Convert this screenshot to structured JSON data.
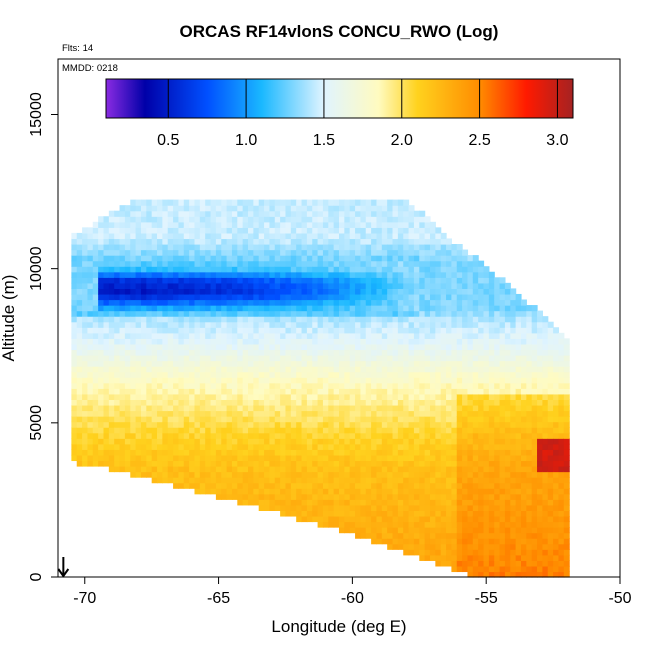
{
  "chart_data": {
    "type": "heatmap",
    "title": "ORCAS RF14vlonS CONCU_RWO (Log)",
    "flights_label": "Flts: 14",
    "date_label": "MMDD: 0218",
    "xlabel": "Longitude (deg E)",
    "ylabel": "Altitude (m)",
    "xlim": [
      -71,
      -50
    ],
    "ylim": [
      0,
      16800
    ],
    "x_ticks": [
      -70,
      -65,
      -60,
      -55,
      -50
    ],
    "x_tick_labels": [
      "-70",
      "-65",
      "-60",
      "-55",
      "-50"
    ],
    "y_ticks": [
      0,
      5000,
      10000,
      15000
    ],
    "y_tick_labels": [
      "0",
      "5000",
      "10000",
      "15000"
    ],
    "colorbar": {
      "range": [
        0.1,
        3.1
      ],
      "ticks": [
        0.5,
        1.0,
        1.5,
        2.0,
        2.5,
        3.0
      ],
      "tick_labels": [
        "0.5",
        "1.0",
        "1.5",
        "2.0",
        "2.5",
        "3.0"
      ],
      "color_stops": [
        {
          "v": 0.1,
          "color": "#8a2be2"
        },
        {
          "v": 0.35,
          "color": "#0000a8"
        },
        {
          "v": 0.75,
          "color": "#0050ff"
        },
        {
          "v": 1.1,
          "color": "#1ab8ff"
        },
        {
          "v": 1.5,
          "color": "#e0f4ff"
        },
        {
          "v": 1.85,
          "color": "#fffbc0"
        },
        {
          "v": 2.1,
          "color": "#ffd21e"
        },
        {
          "v": 2.5,
          "color": "#ff8c00"
        },
        {
          "v": 2.8,
          "color": "#ff1a00"
        },
        {
          "v": 3.1,
          "color": "#a52222"
        }
      ]
    },
    "x_marker": {
      "x": -70.8,
      "symbol": "down-arrow"
    },
    "grid": false,
    "legend": "colorbar top inside plot",
    "profile": [
      {
        "z": 12000,
        "v": 1.45
      },
      {
        "z": 11000,
        "v": 1.45
      },
      {
        "z": 10400,
        "v": 1.3
      },
      {
        "z": 10000,
        "v": 1.15
      },
      {
        "z": 9600,
        "v": 0.55
      },
      {
        "z": 9200,
        "v": 0.45
      },
      {
        "z": 8800,
        "v": 0.95
      },
      {
        "z": 8400,
        "v": 1.4
      },
      {
        "z": 7500,
        "v": 1.55
      },
      {
        "z": 6500,
        "v": 1.8
      },
      {
        "z": 5500,
        "v": 1.95
      },
      {
        "z": 4500,
        "v": 2.1
      },
      {
        "z": 3500,
        "v": 2.2
      },
      {
        "z": 2500,
        "v": 2.25
      },
      {
        "z": 1500,
        "v": 2.3
      },
      {
        "z": 500,
        "v": 2.35
      },
      {
        "z": 0,
        "v": 2.4
      }
    ],
    "domain_top": [
      {
        "lon": -70.5,
        "z": 11000
      },
      {
        "lon": -68.0,
        "z": 12200
      },
      {
        "lon": -58.0,
        "z": 12200
      },
      {
        "lon": -56.5,
        "z": 11000
      },
      {
        "lon": -55.0,
        "z": 10000
      },
      {
        "lon": -53.0,
        "z": 8500
      },
      {
        "lon": -52.0,
        "z": 7600
      }
    ],
    "domain_bottom": [
      {
        "lon": -70.5,
        "z": 3800
      },
      {
        "lon": -69.0,
        "z": 3600
      },
      {
        "lon": -65.0,
        "z": 2700
      },
      {
        "lon": -60.0,
        "z": 1500
      },
      {
        "lon": -56.0,
        "z": 300
      },
      {
        "lon": -55.0,
        "z": 0
      },
      {
        "lon": -52.0,
        "z": 100
      }
    ],
    "low_value_band": {
      "lon_start": -69.5,
      "lon_end": -57.5,
      "z_min": 8700,
      "z_max": 10200
    },
    "high_value_patch": {
      "lon_start": -53.0,
      "lon_end": -51.8,
      "z_min": 3500,
      "z_max": 4500,
      "value": 2.95
    }
  }
}
